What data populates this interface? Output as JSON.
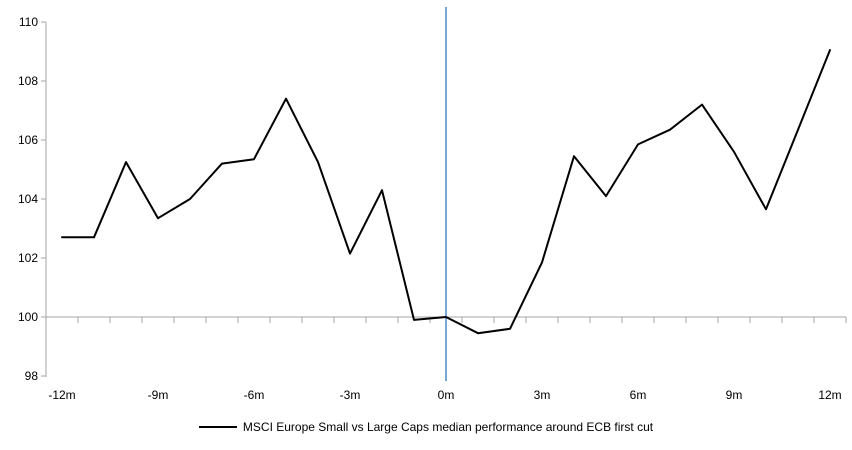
{
  "chart_data": {
    "type": "line",
    "title": "",
    "xlabel": "",
    "ylabel": "",
    "x": [
      -12,
      -11,
      -10,
      -9,
      -8,
      -7,
      -6,
      -5,
      -4,
      -3,
      -2,
      -1,
      0,
      1,
      2,
      3,
      4,
      5,
      6,
      7,
      8,
      9,
      10,
      11,
      12
    ],
    "series": [
      {
        "name": "MSCI Europe Small vs Large Caps median performance around ECB first cut",
        "values": [
          102.7,
          102.7,
          105.25,
          103.35,
          104.0,
          105.2,
          105.35,
          107.4,
          105.25,
          102.15,
          104.3,
          99.9,
          100.0,
          99.45,
          99.6,
          101.85,
          105.45,
          104.1,
          105.85,
          106.35,
          107.2,
          105.6,
          103.65,
          106.35,
          109.05
        ]
      }
    ],
    "ylim": [
      98,
      110
    ],
    "yticks": [
      98,
      100,
      102,
      104,
      106,
      108,
      110
    ],
    "xticks": [
      {
        "m": -12,
        "label": "-12m"
      },
      {
        "m": -9,
        "label": "-9m"
      },
      {
        "m": -6,
        "label": "-6m"
      },
      {
        "m": -3,
        "label": "-3m"
      },
      {
        "m": 0,
        "label": "0m"
      },
      {
        "m": 3,
        "label": "3m"
      },
      {
        "m": 6,
        "label": "6m"
      },
      {
        "m": 9,
        "label": "9m"
      },
      {
        "m": 12,
        "label": "12m"
      }
    ],
    "event_line_x": 0,
    "baseline_value": 100,
    "legend_position": "bottom",
    "grid": false,
    "colors": {
      "series": "#000000",
      "event_line": "#75A8D6",
      "axis": "#A6A6A6",
      "baseline": "#A6A6A6",
      "text": "#000000"
    }
  }
}
